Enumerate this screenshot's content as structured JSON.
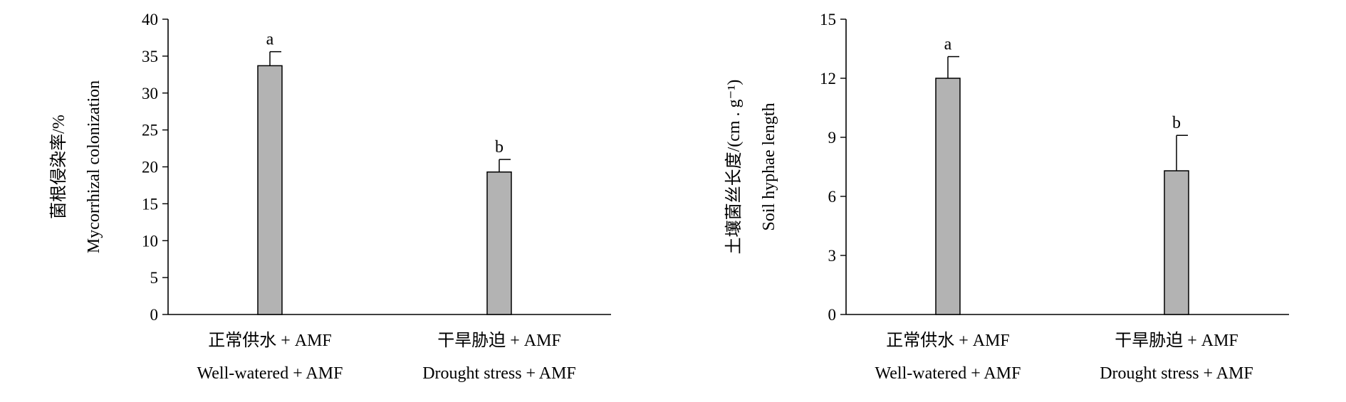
{
  "colors": {
    "bar_fill": "#b3b3b3",
    "axis": "#000000"
  },
  "chart_data": [
    {
      "type": "bar",
      "categories": [
        {
          "line1": "正常供水 + AMF",
          "line2": "Well-watered + AMF"
        },
        {
          "line1": "干旱胁迫 + AMF",
          "line2": "Drought stress + AMF"
        }
      ],
      "values": [
        33.7,
        19.3
      ],
      "errors": [
        1.9,
        1.7
      ],
      "significance": [
        "a",
        "b"
      ],
      "ylabel": [
        "菌根侵染率/%",
        "Mycorrhizal colonization"
      ],
      "ylim": [
        0,
        40
      ],
      "yticks": [
        0,
        5,
        10,
        15,
        20,
        25,
        30,
        35,
        40
      ],
      "grid": false
    },
    {
      "type": "bar",
      "categories": [
        {
          "line1": "正常供水 + AMF",
          "line2": "Well-watered + AMF"
        },
        {
          "line1": "干旱胁迫 + AMF",
          "line2": "Drought stress + AMF"
        }
      ],
      "values": [
        12.0,
        7.3
      ],
      "errors": [
        1.1,
        1.8
      ],
      "significance": [
        "a",
        "b"
      ],
      "ylabel": [
        "土壤菌丝长度/(cm . g⁻¹)",
        "Soil hyphae length"
      ],
      "ylim": [
        0,
        15
      ],
      "yticks": [
        0,
        3,
        6,
        9,
        12,
        15
      ],
      "grid": false
    }
  ]
}
